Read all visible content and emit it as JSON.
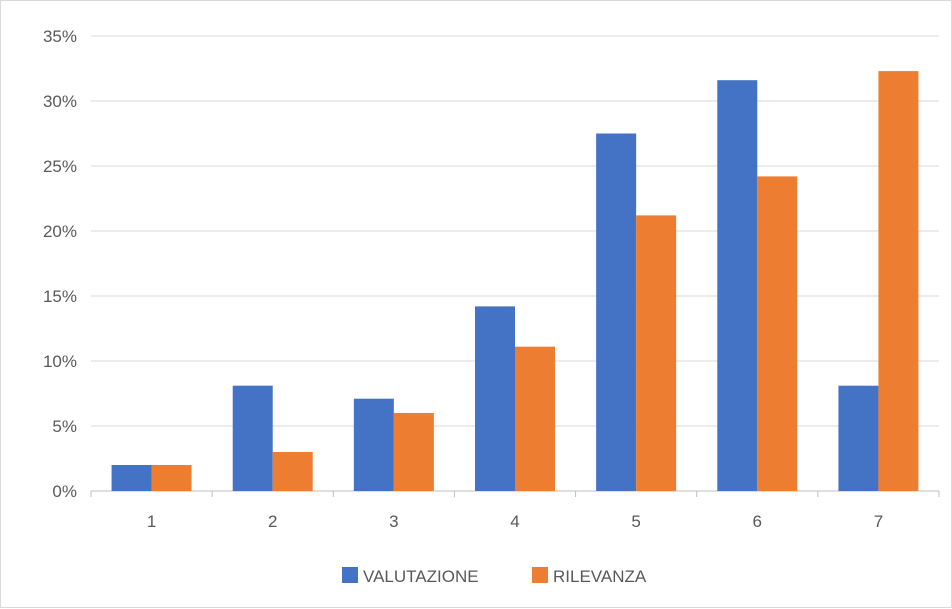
{
  "chart_data": {
    "type": "bar",
    "categories": [
      "1",
      "2",
      "3",
      "4",
      "5",
      "6",
      "7"
    ],
    "series": [
      {
        "name": "VALUTAZIONE",
        "color": "#4472C4",
        "values": [
          2,
          8.1,
          7.1,
          14.2,
          27.5,
          31.6,
          8.1
        ]
      },
      {
        "name": "RILEVANZA",
        "color": "#ED7D31",
        "values": [
          2,
          3,
          6,
          11.1,
          21.2,
          24.2,
          32.3
        ]
      }
    ],
    "ylim": [
      0,
      35
    ],
    "yticks": [
      "0%",
      "5%",
      "10%",
      "15%",
      "20%",
      "25%",
      "30%",
      "35%"
    ],
    "ytick_values": [
      0,
      5,
      10,
      15,
      20,
      25,
      30,
      35
    ],
    "grid": true,
    "legend_position": "bottom"
  }
}
